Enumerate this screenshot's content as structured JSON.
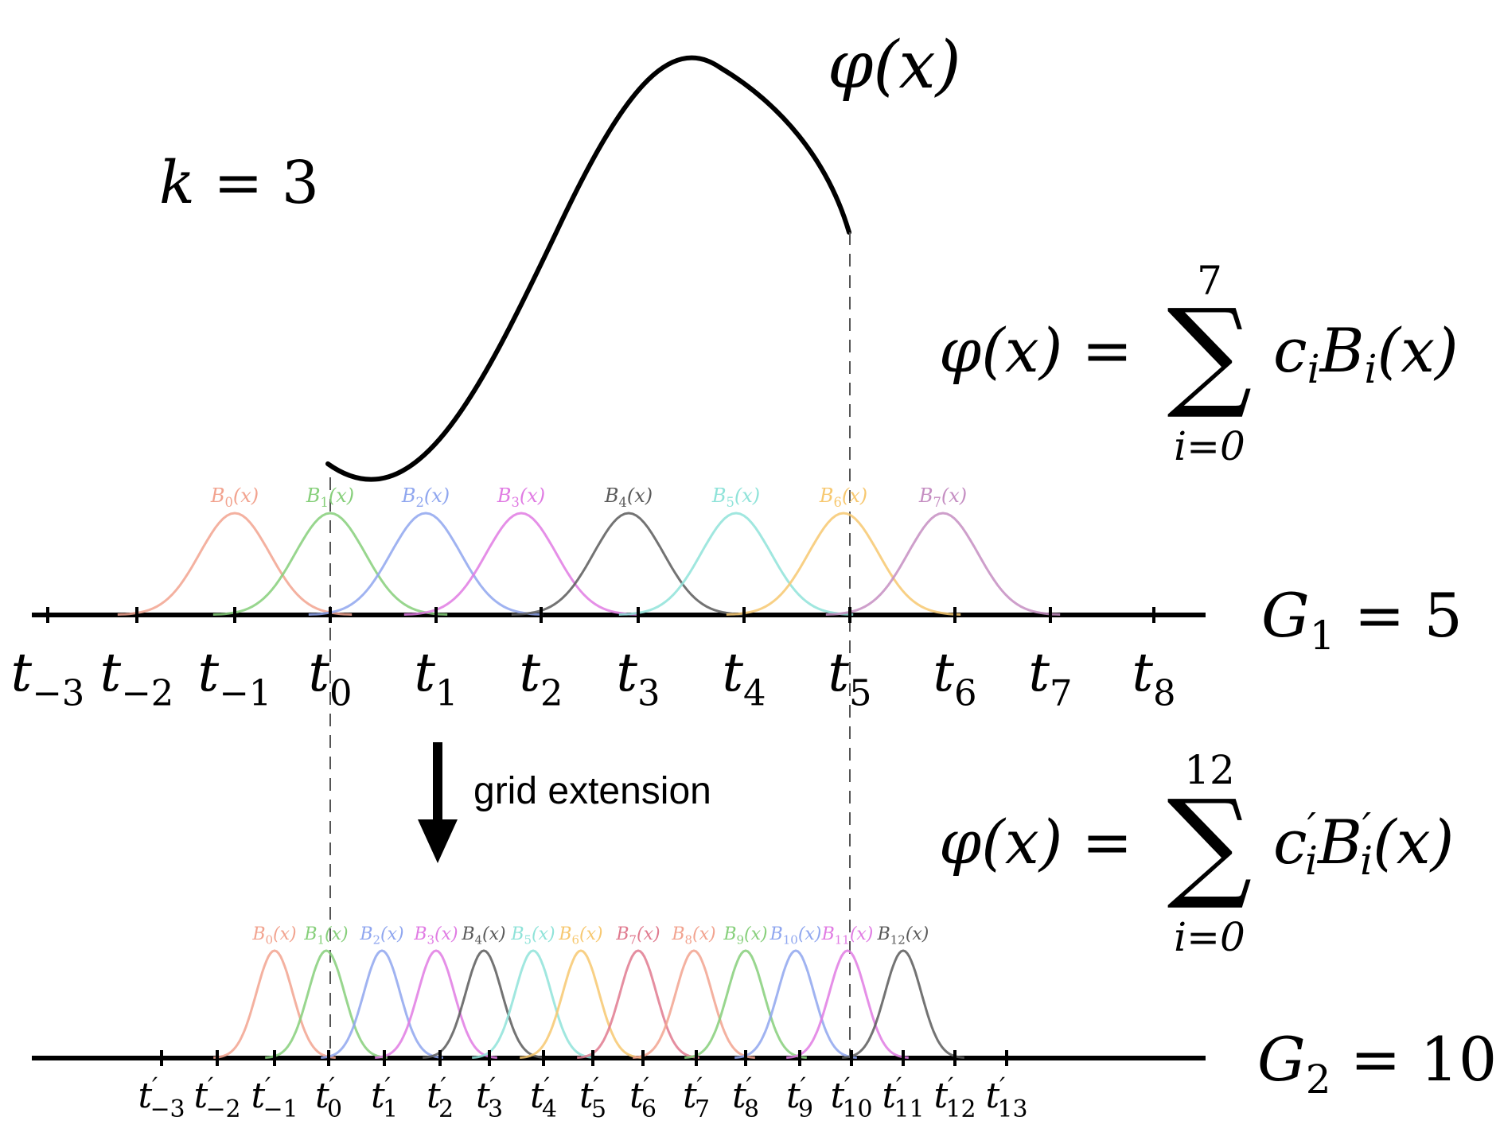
{
  "phi_label": "φ(x)",
  "order_label": {
    "var": "k",
    "eq": " = 3"
  },
  "formula_top": {
    "lhs": "φ(x) = ",
    "upper": "7",
    "lower": "i=0",
    "c": "c",
    "B": "B",
    "sub": "i",
    "arg": "(x)"
  },
  "formula_bottom": {
    "lhs": "φ(x) = ",
    "upper": "12",
    "lower": "i=0",
    "c": "c",
    "B": "B",
    "sub": "i",
    "prime": "′",
    "arg": "(x)"
  },
  "grid_top": {
    "label_var": "G",
    "label_sub": "1",
    "label_eq": " = 5"
  },
  "grid_bottom": {
    "label_var": "G",
    "label_sub": "2",
    "label_eq": " = 10"
  },
  "arrow_label": "grid extension",
  "top_knots": [
    "−3",
    "−2",
    "−1",
    "0",
    "1",
    "2",
    "3",
    "4",
    "5",
    "6",
    "7",
    "8"
  ],
  "bottom_knots": [
    "−3",
    "−2",
    "−1",
    "0",
    "1",
    "2",
    "3",
    "4",
    "5",
    "6",
    "7",
    "8",
    "9",
    "10",
    "11",
    "12",
    "13"
  ],
  "top_basis": [
    {
      "sub": "0",
      "color": "#f2a38f"
    },
    {
      "sub": "1",
      "color": "#86cf7a"
    },
    {
      "sub": "2",
      "color": "#8fa6ef"
    },
    {
      "sub": "3",
      "color": "#e07be3"
    },
    {
      "sub": "4",
      "color": "#5a5a5a"
    },
    {
      "sub": "5",
      "color": "#8fe3d9"
    },
    {
      "sub": "6",
      "color": "#f7c870"
    },
    {
      "sub": "7",
      "color": "#c58ec2"
    }
  ],
  "bottom_basis": [
    {
      "sub": "0",
      "color": "#f2a38f"
    },
    {
      "sub": "1",
      "color": "#86cf7a"
    },
    {
      "sub": "2",
      "color": "#8fa6ef"
    },
    {
      "sub": "3",
      "color": "#e07be3"
    },
    {
      "sub": "4",
      "color": "#5a5a5a"
    },
    {
      "sub": "5",
      "color": "#8fe3d9"
    },
    {
      "sub": "6",
      "color": "#f7c870"
    },
    {
      "sub": "7",
      "color": "#e07a8f"
    },
    {
      "sub": "8",
      "color": "#f2a38f"
    },
    {
      "sub": "9",
      "color": "#86cf7a"
    },
    {
      "sub": "10",
      "color": "#8fa6ef"
    },
    {
      "sub": "11",
      "color": "#e07be3"
    },
    {
      "sub": "12",
      "color": "#5a5a5a"
    }
  ]
}
